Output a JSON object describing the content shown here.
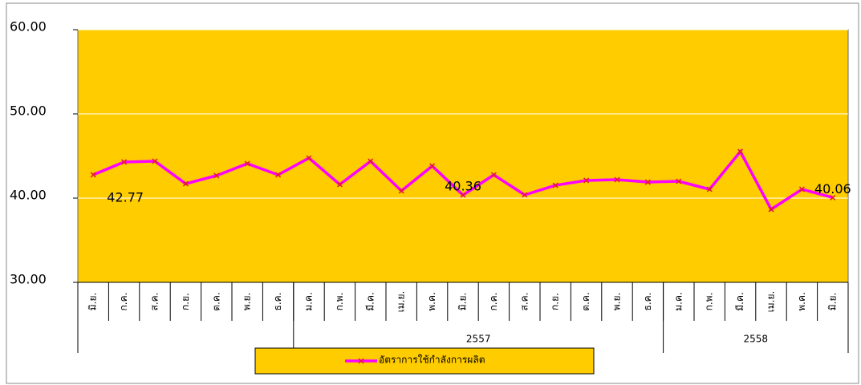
{
  "chart_data": {
    "type": "line",
    "categories": [
      "มิ.ย.",
      "ก.ค.",
      "ส.ค.",
      "ก.ย.",
      "ต.ค.",
      "พ.ย.",
      "ธ.ค.",
      "ม.ค.",
      "ก.พ.",
      "มี.ค.",
      "เม.ย.",
      "พ.ค.",
      "มิ.ย.",
      "ก.ค.",
      "ส.ค.",
      "ก.ย.",
      "ต.ค.",
      "พ.ย.",
      "ธ.ค.",
      "ม.ค.",
      "ก.พ.",
      "มี.ค.",
      "เม.ย.",
      "พ.ค.",
      "มิ.ย."
    ],
    "groups": [
      {
        "label": null,
        "size": 7
      },
      {
        "label": "2557",
        "size": 12
      },
      {
        "label": "2558",
        "size": 6
      }
    ],
    "series": [
      {
        "name": "อัตราการใช้กำลังการผลิต",
        "color": "#ff00ff",
        "marker_color": "#e0201a",
        "values": [
          42.77,
          44.29,
          44.38,
          41.71,
          42.67,
          44.1,
          42.76,
          44.76,
          41.62,
          44.38,
          40.86,
          43.81,
          40.36,
          42.76,
          40.38,
          41.52,
          42.1,
          42.19,
          41.9,
          42.0,
          41.05,
          45.52,
          38.67,
          41.05,
          40.06
        ],
        "value_labels": [
          "42.77",
          null,
          null,
          null,
          null,
          null,
          null,
          null,
          null,
          null,
          null,
          null,
          "40.36",
          null,
          null,
          null,
          null,
          null,
          null,
          null,
          null,
          null,
          null,
          null,
          "40.06"
        ]
      }
    ],
    "ylim": [
      30,
      60
    ],
    "yticks": [
      {
        "value": 30,
        "label": "30.00"
      },
      {
        "value": 40,
        "label": "40.00"
      },
      {
        "value": 50,
        "label": "50.00"
      },
      {
        "value": 60,
        "label": "60.00"
      }
    ],
    "grid": true,
    "plot_color": "#ffcc00"
  }
}
